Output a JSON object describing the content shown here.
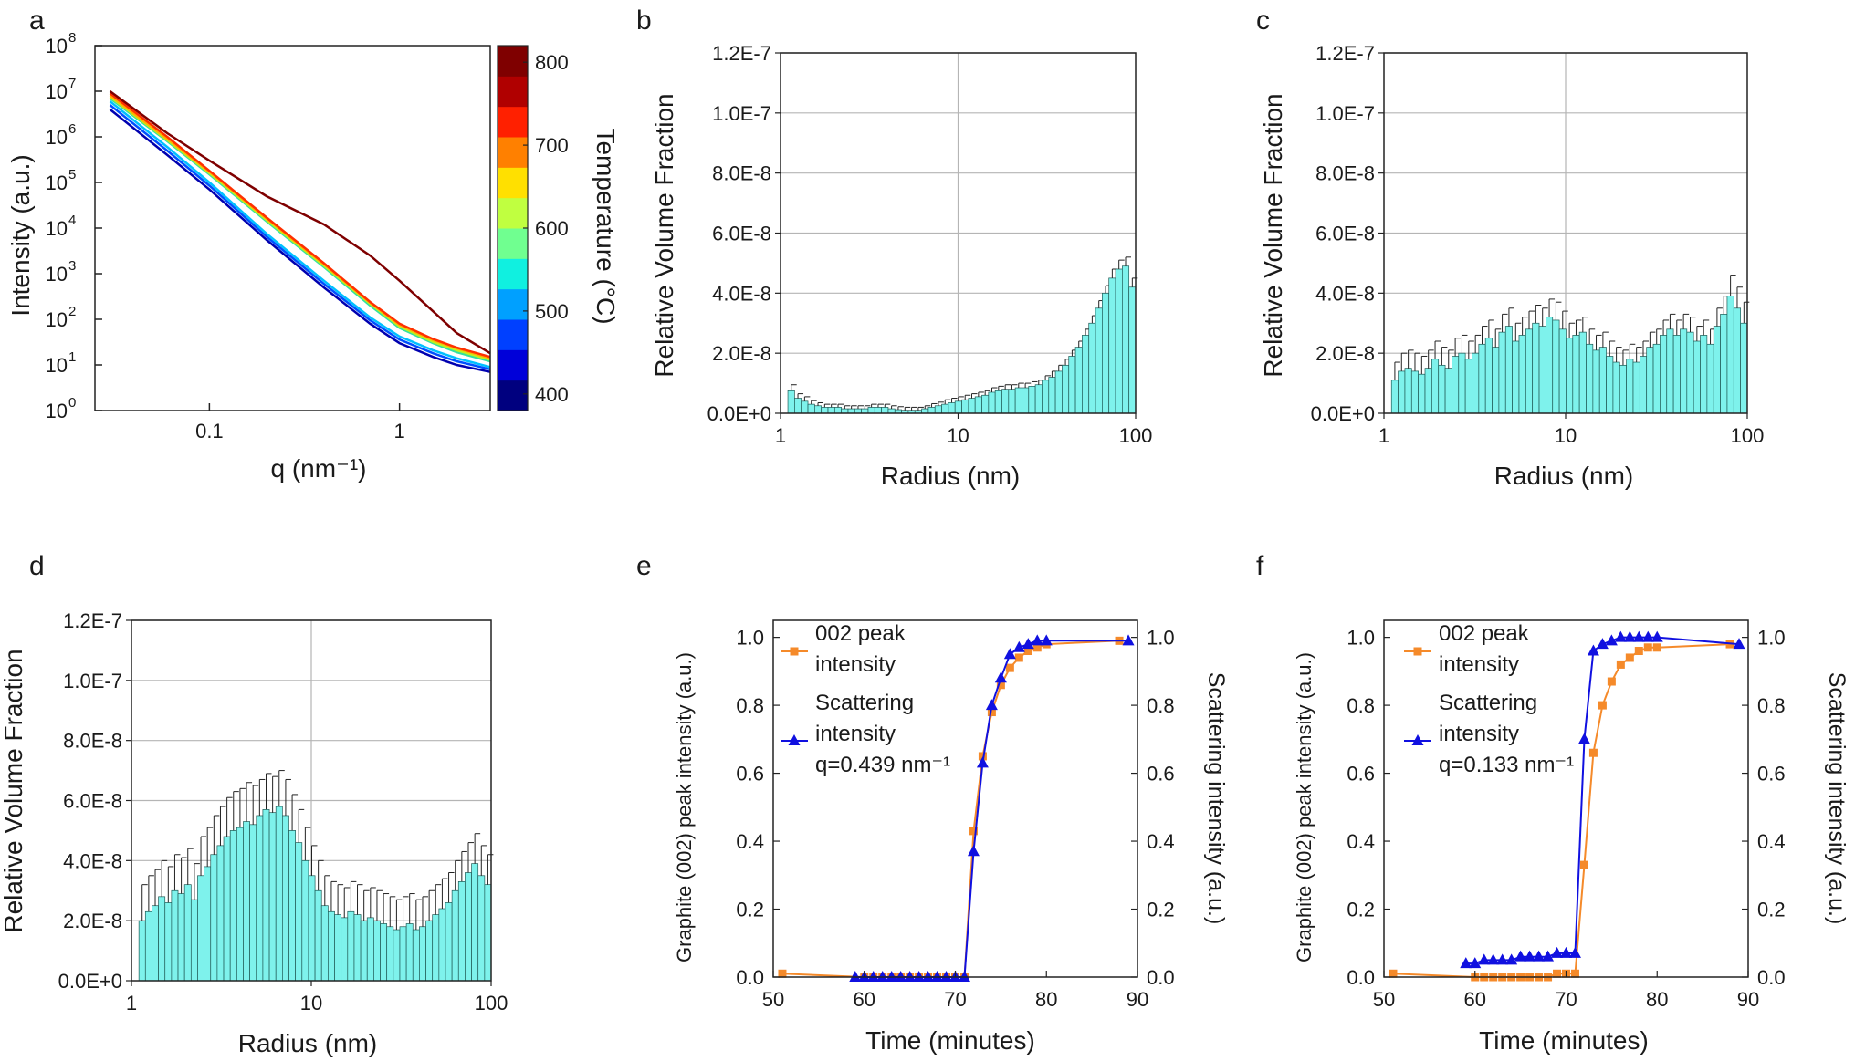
{
  "panel_letters": [
    "a",
    "b",
    "c",
    "d",
    "e",
    "f"
  ],
  "colorbar": {
    "label": "Temperature (°C)",
    "ticks": [
      "800",
      "700",
      "600",
      "500",
      "400"
    ],
    "range": [
      380,
      820
    ],
    "colors": [
      "#00007f",
      "#0000d9",
      "#0040ff",
      "#00a0ff",
      "#10f0e0",
      "#70ff90",
      "#c0ff40",
      "#ffe000",
      "#ff8000",
      "#ff2000",
      "#b00000",
      "#7f0000"
    ]
  },
  "chart_data": [
    {
      "panel": "a",
      "type": "line",
      "xlabel": "q (nm⁻¹)",
      "ylabel": "Intensity (a.u.)",
      "xscale": "log",
      "yscale": "log",
      "xlim": [
        0.025,
        3
      ],
      "ylim": [
        1,
        100000000
      ],
      "xticks": [
        0.1,
        1
      ],
      "xtick_labels": [
        "0.1",
        "1"
      ],
      "yticks": [
        1,
        10,
        100,
        1000,
        10000,
        100000,
        1000000,
        10000000,
        100000000
      ],
      "ytick_labels": [
        "10",
        "10",
        "10",
        "10",
        "10",
        "10",
        "10",
        "10",
        "10"
      ],
      "ytick_exponents": [
        "0",
        "1",
        "2",
        "3",
        "4",
        "5",
        "6",
        "7",
        "8"
      ],
      "series": [
        {
          "color": "#0000b0",
          "x": [
            0.03,
            0.06,
            0.1,
            0.2,
            0.4,
            0.7,
            1.0,
            1.5,
            2.0,
            3.0
          ],
          "y": [
            4000000,
            400000,
            70000,
            5500,
            500,
            80,
            30,
            15,
            10,
            7
          ]
        },
        {
          "color": "#0050ff",
          "x": [
            0.03,
            0.06,
            0.1,
            0.2,
            0.4,
            0.7,
            1.0,
            1.5,
            2.0,
            3.0
          ],
          "y": [
            5000000,
            500000,
            85000,
            6500,
            600,
            95,
            36,
            18,
            12,
            8
          ]
        },
        {
          "color": "#00c0ff",
          "x": [
            0.03,
            0.06,
            0.1,
            0.2,
            0.4,
            0.7,
            1.0,
            1.5,
            2.0,
            3.0
          ],
          "y": [
            6000000,
            600000,
            100000,
            7500,
            700,
            110,
            42,
            21,
            14,
            9
          ]
        },
        {
          "color": "#30e0a0",
          "x": [
            0.03,
            0.06,
            0.1,
            0.2,
            0.4,
            0.7,
            1.0,
            1.5,
            2.0,
            3.0
          ],
          "y": [
            7000000,
            800000,
            150000,
            14000,
            1400,
            200,
            65,
            30,
            19,
            12
          ]
        },
        {
          "color": "#c0f020",
          "x": [
            0.03,
            0.06,
            0.1,
            0.2,
            0.4,
            0.7,
            1.0,
            1.5,
            2.0,
            3.0
          ],
          "y": [
            7500000,
            850000,
            160000,
            15000,
            1500,
            220,
            70,
            32,
            21,
            13
          ]
        },
        {
          "color": "#ffb000",
          "x": [
            0.03,
            0.06,
            0.1,
            0.2,
            0.4,
            0.7,
            1.0,
            1.5,
            2.0,
            3.0
          ],
          "y": [
            8000000,
            900000,
            170000,
            16000,
            1600,
            230,
            75,
            35,
            23,
            14
          ]
        },
        {
          "color": "#ff3000",
          "x": [
            0.03,
            0.06,
            0.1,
            0.2,
            0.4,
            0.7,
            1.0,
            1.5,
            2.0,
            3.0
          ],
          "y": [
            9000000,
            1000000,
            180000,
            17000,
            1700,
            240,
            80,
            37,
            24,
            15
          ]
        },
        {
          "color": "#7f0000",
          "x": [
            0.03,
            0.06,
            0.1,
            0.2,
            0.4,
            0.7,
            1.0,
            1.5,
            2.0,
            3.0
          ],
          "y": [
            10000000,
            1200000,
            300000,
            50000,
            12000,
            2500,
            700,
            150,
            50,
            18
          ]
        }
      ]
    },
    {
      "panel": "b",
      "type": "bar",
      "xlabel": "Radius (nm)",
      "ylabel": "Relative Volume Fraction",
      "xscale": "log",
      "xlim": [
        1,
        100
      ],
      "ylim": [
        0,
        1.2e-07
      ],
      "xticks": [
        1,
        10,
        100
      ],
      "xtick_labels": [
        "1",
        "10",
        "100"
      ],
      "yticks": [
        0,
        2e-08,
        4e-08,
        6e-08,
        8e-08,
        1e-07,
        1.2e-07
      ],
      "ytick_labels": [
        "0.0E+0",
        "2.0E-8",
        "4.0E-8",
        "6.0E-8",
        "8.0E-8",
        "1.0E-7",
        "1.2E-7"
      ],
      "grid": true,
      "bar_color": "#7ef2ec",
      "y": [
        7.5e-09,
        5e-09,
        4e-09,
        3e-09,
        2.5e-09,
        2e-09,
        2e-09,
        2e-09,
        1.5e-09,
        1.5e-09,
        1.5e-09,
        1.5e-09,
        2e-09,
        2e-09,
        2e-09,
        1.5e-09,
        1.2e-09,
        1e-09,
        1e-09,
        1e-09,
        1.5e-09,
        2e-09,
        2.5e-09,
        3e-09,
        3.5e-09,
        4e-09,
        4.5e-09,
        5e-09,
        5.5e-09,
        6e-09,
        7e-09,
        7.5e-09,
        8e-09,
        8e-09,
        8.5e-09,
        8.5e-09,
        9e-09,
        9.5e-09,
        1.1e-08,
        1.2e-08,
        1.4e-08,
        1.6e-08,
        1.9e-08,
        2.2e-08,
        2.6e-08,
        3e-08,
        3.5e-08,
        4e-08,
        4.5e-08,
        4.8e-08,
        4.9e-08,
        4.2e-08
      ],
      "err": [
        2e-09,
        1.5e-09,
        1.5e-09,
        1.2e-09,
        1e-09,
        1e-09,
        1e-09,
        1e-09,
        1e-09,
        1e-09,
        1e-09,
        1e-09,
        1e-09,
        1e-09,
        1e-09,
        1e-09,
        1e-09,
        1e-09,
        1e-09,
        1e-09,
        1e-09,
        1.2e-09,
        1.2e-09,
        1.5e-09,
        1.5e-09,
        1.5e-09,
        1.5e-09,
        1.5e-09,
        1.5e-09,
        1.5e-09,
        1.5e-09,
        1.5e-09,
        1.5e-09,
        1.5e-09,
        1.5e-09,
        1.5e-09,
        1.5e-09,
        1.5e-09,
        1.5e-09,
        2e-09,
        2e-09,
        2e-09,
        2e-09,
        2e-09,
        2e-09,
        2.5e-09,
        2.5e-09,
        2.5e-09,
        3e-09,
        3e-09,
        3e-09,
        3e-09
      ]
    },
    {
      "panel": "c",
      "type": "bar",
      "xlabel": "Radius (nm)",
      "ylabel": "Relative Volume Fraction",
      "xscale": "log",
      "xlim": [
        1,
        100
      ],
      "ylim": [
        0,
        1.2e-07
      ],
      "xticks": [
        1,
        10,
        100
      ],
      "xtick_labels": [
        "1",
        "10",
        "100"
      ],
      "yticks": [
        0,
        2e-08,
        4e-08,
        6e-08,
        8e-08,
        1e-07,
        1.2e-07
      ],
      "ytick_labels": [
        "0.0E+0",
        "2.0E-8",
        "4.0E-8",
        "6.0E-8",
        "8.0E-8",
        "1.0E-7",
        "1.2E-7"
      ],
      "grid": true,
      "bar_color": "#7ef2ec",
      "y": [
        1.1e-08,
        1.4e-08,
        1.5e-08,
        1.4e-08,
        1.3e-08,
        1.5e-08,
        1.8e-08,
        1.6e-08,
        1.5e-08,
        1.9e-08,
        2e-08,
        1.8e-08,
        2e-08,
        2.3e-08,
        2.5e-08,
        2.2e-08,
        2.7e-08,
        2.9e-08,
        2.4e-08,
        2.6e-08,
        2.8e-08,
        3e-08,
        2.9e-08,
        3.2e-08,
        3.1e-08,
        2.8e-08,
        2.5e-08,
        2.6e-08,
        2.7e-08,
        2.3e-08,
        2.1e-08,
        2.2e-08,
        1.9e-08,
        1.7e-08,
        1.6e-08,
        1.8e-08,
        1.7e-08,
        1.9e-08,
        2.2e-08,
        2.3e-08,
        2.6e-08,
        2.8e-08,
        2.6e-08,
        2.8e-08,
        2.7e-08,
        2.4e-08,
        2.6e-08,
        2.3e-08,
        2.9e-08,
        3.3e-08,
        3.9e-08,
        3.5e-08,
        3e-08
      ],
      "err": [
        6e-09,
        6e-09,
        6e-09,
        6e-09,
        6e-09,
        6e-09,
        6e-09,
        6e-09,
        6e-09,
        6e-09,
        6e-09,
        6e-09,
        6e-09,
        6e-09,
        6e-09,
        6e-09,
        6e-09,
        6e-09,
        6e-09,
        6e-09,
        6e-09,
        6e-09,
        6e-09,
        6e-09,
        6e-09,
        6e-09,
        5e-09,
        5e-09,
        5e-09,
        5e-09,
        5e-09,
        5e-09,
        5e-09,
        5e-09,
        5e-09,
        5e-09,
        5e-09,
        5e-09,
        5e-09,
        5e-09,
        5e-09,
        5e-09,
        5e-09,
        5e-09,
        5e-09,
        5e-09,
        5e-09,
        5e-09,
        6e-09,
        6e-09,
        7e-09,
        7e-09,
        7e-09
      ]
    },
    {
      "panel": "d",
      "type": "bar",
      "xlabel": "Radius (nm)",
      "ylabel": "Relative Volume Fraction",
      "xscale": "log",
      "xlim": [
        1,
        100
      ],
      "ylim": [
        0,
        1.2e-07
      ],
      "xticks": [
        1,
        10,
        100
      ],
      "xtick_labels": [
        "1",
        "10",
        "100"
      ],
      "yticks": [
        0,
        2e-08,
        4e-08,
        6e-08,
        8e-08,
        1e-07,
        1.2e-07
      ],
      "ytick_labels": [
        "0.0E+0",
        "2.0E-8",
        "4.0E-8",
        "6.0E-8",
        "8.0E-8",
        "1.0E-7",
        "1.2E-7"
      ],
      "grid": true,
      "bar_color": "#7ef2ec",
      "y": [
        2e-08,
        2.3e-08,
        2.5e-08,
        2.8e-08,
        2.6e-08,
        3e-08,
        2.9e-08,
        3.2e-08,
        2.7e-08,
        3.5e-08,
        3.8e-08,
        4.2e-08,
        4.5e-08,
        4.8e-08,
        5e-08,
        5.1e-08,
        5.3e-08,
        5.2e-08,
        5.5e-08,
        5.7e-08,
        5.6e-08,
        5.8e-08,
        5.5e-08,
        5e-08,
        4.6e-08,
        4e-08,
        3.5e-08,
        3e-08,
        2.5e-08,
        2.3e-08,
        2.2e-08,
        2.1e-08,
        2.3e-08,
        2.2e-08,
        2e-08,
        2.1e-08,
        2e-08,
        1.9e-08,
        1.8e-08,
        1.7e-08,
        1.8e-08,
        1.9e-08,
        1.7e-08,
        1.8e-08,
        2e-08,
        2.2e-08,
        2.4e-08,
        2.6e-08,
        3e-08,
        3.3e-08,
        3.6e-08,
        3.9e-08,
        3.5e-08,
        3.2e-08
      ],
      "err": [
        1.2e-08,
        1.2e-08,
        1.2e-08,
        1.2e-08,
        1.2e-08,
        1.2e-08,
        1.2e-08,
        1.2e-08,
        1.2e-08,
        1.3e-08,
        1.3e-08,
        1.3e-08,
        1.3e-08,
        1.3e-08,
        1.3e-08,
        1.3e-08,
        1.3e-08,
        1.3e-08,
        1.2e-08,
        1.2e-08,
        1.2e-08,
        1.2e-08,
        1.2e-08,
        1.2e-08,
        1.1e-08,
        1.1e-08,
        1e-08,
        1e-08,
        1e-08,
        1e-08,
        1e-08,
        1e-08,
        1e-08,
        1e-08,
        1e-08,
        1e-08,
        1e-08,
        1e-08,
        1e-08,
        1e-08,
        1e-08,
        1e-08,
        1e-08,
        1e-08,
        1e-08,
        1e-08,
        1e-08,
        1e-08,
        1e-08,
        1e-08,
        1e-08,
        1e-08,
        1e-08,
        1e-08
      ]
    },
    {
      "panel": "e",
      "type": "line",
      "xlabel": "Time (minutes)",
      "ylabel": "Graphite (002) peak intensity (a.u.)",
      "ylabel_right": "Scattering intensity (a.u.)",
      "xlim": [
        50,
        90
      ],
      "ylim": [
        0,
        1.05
      ],
      "ylim_right": [
        0,
        1.05
      ],
      "xticks": [
        50,
        60,
        70,
        80,
        90
      ],
      "yticks": [
        0.0,
        0.2,
        0.4,
        0.6,
        0.8,
        1.0
      ],
      "ytick_labels": [
        "0.0",
        "0.2",
        "0.4",
        "0.6",
        "0.8",
        "1.0"
      ],
      "legend": [
        "002 peak intensity",
        "Scattering intensity q=0.439 nm⁻¹"
      ],
      "legend_lines": [
        [
          "002 peak",
          "intensity"
        ],
        [
          "Scattering",
          "intensity",
          "q=0.439 nm⁻¹"
        ]
      ],
      "series": [
        {
          "name": "002 peak intensity",
          "color": "#f58a2a",
          "marker": "square",
          "x": [
            51,
            60,
            61,
            62,
            63,
            64,
            65,
            66,
            67,
            68,
            69,
            70,
            71,
            72,
            73,
            74,
            75,
            76,
            77,
            78,
            79,
            80,
            88
          ],
          "y": [
            0.01,
            0.0,
            0.0,
            0.0,
            0.0,
            0.0,
            0.0,
            0.0,
            0.0,
            0.0,
            0.0,
            0.0,
            0.0,
            0.43,
            0.65,
            0.78,
            0.86,
            0.91,
            0.94,
            0.96,
            0.97,
            0.98,
            0.99
          ]
        },
        {
          "name": "Scattering intensity q=0.439 nm⁻¹",
          "color": "#1010e0",
          "marker": "triangle",
          "x": [
            59,
            60,
            61,
            62,
            63,
            64,
            65,
            66,
            67,
            68,
            69,
            70,
            71,
            72,
            73,
            74,
            75,
            76,
            77,
            78,
            79,
            80,
            89
          ],
          "y": [
            0.0,
            0.0,
            0.0,
            0.0,
            0.0,
            0.0,
            0.0,
            0.0,
            0.0,
            0.0,
            0.0,
            0.0,
            0.0,
            0.37,
            0.63,
            0.8,
            0.88,
            0.95,
            0.97,
            0.98,
            0.99,
            0.99,
            0.99
          ]
        }
      ]
    },
    {
      "panel": "f",
      "type": "line",
      "xlabel": "Time (minutes)",
      "ylabel": "Graphite (002) peak intensity (a.u.)",
      "ylabel_right": "Scattering intensity (a.u.)",
      "xlim": [
        50,
        90
      ],
      "ylim": [
        0,
        1.05
      ],
      "ylim_right": [
        0,
        1.05
      ],
      "xticks": [
        50,
        60,
        70,
        80,
        90
      ],
      "yticks": [
        0.0,
        0.2,
        0.4,
        0.6,
        0.8,
        1.0
      ],
      "ytick_labels": [
        "0.0",
        "0.2",
        "0.4",
        "0.6",
        "0.8",
        "1.0"
      ],
      "legend": [
        "002 peak intensity",
        "Scattering intensity q=0.133 nm⁻¹"
      ],
      "legend_lines": [
        [
          "002 peak",
          "intensity"
        ],
        [
          "Scattering",
          "intensity",
          "q=0.133 nm⁻¹"
        ]
      ],
      "series": [
        {
          "name": "002 peak intensity",
          "color": "#f58a2a",
          "marker": "square",
          "x": [
            51,
            60,
            61,
            62,
            63,
            64,
            65,
            66,
            67,
            68,
            69,
            70,
            71,
            72,
            73,
            74,
            75,
            76,
            77,
            78,
            79,
            80,
            88
          ],
          "y": [
            0.01,
            0.0,
            0.0,
            0.0,
            0.0,
            0.0,
            0.0,
            0.0,
            0.0,
            0.0,
            0.01,
            0.01,
            0.01,
            0.33,
            0.66,
            0.8,
            0.87,
            0.92,
            0.94,
            0.96,
            0.97,
            0.97,
            0.98
          ]
        },
        {
          "name": "Scattering intensity q=0.133 nm⁻¹",
          "color": "#1010e0",
          "marker": "triangle",
          "x": [
            59,
            60,
            61,
            62,
            63,
            64,
            65,
            66,
            67,
            68,
            69,
            70,
            71,
            72,
            73,
            74,
            75,
            76,
            77,
            78,
            79,
            80,
            89
          ],
          "y": [
            0.04,
            0.04,
            0.05,
            0.05,
            0.05,
            0.05,
            0.06,
            0.06,
            0.06,
            0.06,
            0.07,
            0.07,
            0.07,
            0.7,
            0.96,
            0.98,
            0.99,
            1.0,
            1.0,
            1.0,
            1.0,
            1.0,
            0.98
          ]
        }
      ]
    }
  ]
}
